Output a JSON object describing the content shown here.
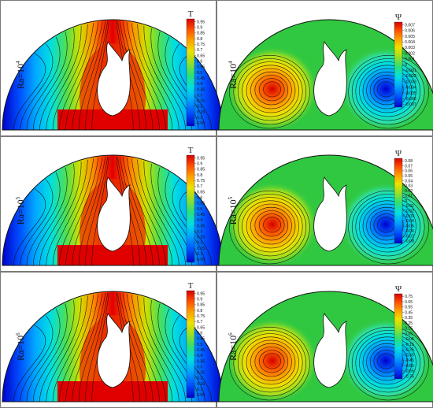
{
  "figure": {
    "rows": [
      {
        "ra_base": "Ra=10",
        "ra_exp": "4",
        "temperature": {
          "title": "T",
          "ticks": [
            "0.95",
            "0.9",
            "0.85",
            "0.8",
            "0.75",
            "0.7",
            "0.65",
            "0.6",
            "0.55",
            "0.5",
            "0.45",
            "0.4",
            "0.35",
            "0.3",
            "0.25",
            "0.2",
            "0.15",
            "0.1",
            "0.05"
          ]
        },
        "stream": {
          "title": "Ψ",
          "ticks": [
            "0.007",
            "0.006",
            "0.005",
            "0.004",
            "0.003",
            "0.002",
            "0.001",
            "0",
            "-0.001",
            "-0.002",
            "-0.003",
            "-0.004",
            "-0.005",
            "-0.006",
            "-0.007"
          ]
        }
      },
      {
        "ra_base": "Ra=10",
        "ra_exp": "5",
        "temperature": {
          "title": "T",
          "ticks": [
            "0.95",
            "0.9",
            "0.85",
            "0.8",
            "0.75",
            "0.7",
            "0.65",
            "0.6",
            "0.55",
            "0.5",
            "0.45",
            "0.4",
            "0.35",
            "0.3",
            "0.25",
            "0.2",
            "0.15",
            "0.1",
            "0.05"
          ]
        },
        "stream": {
          "title": "Ψ",
          "ticks": [
            "0.08",
            "0.07",
            "0.06",
            "0.05",
            "0.04",
            "0.03",
            "0.02",
            "0.01",
            "0",
            "-0.01",
            "-0.02",
            "-0.03",
            "-0.04",
            "-0.05",
            "-0.06",
            "-0.07",
            "-0.08"
          ]
        }
      },
      {
        "ra_base": "Ra=10",
        "ra_exp": "6",
        "temperature": {
          "title": "T",
          "ticks": [
            "0.95",
            "0.9",
            "0.85",
            "0.8",
            "0.75",
            "0.7",
            "0.65",
            "0.6",
            "0.55",
            "0.5",
            "0.45",
            "0.4",
            "0.35",
            "0.3",
            "0.25",
            "0.2",
            "0.15",
            "0.1",
            "0.05"
          ]
        },
        "stream": {
          "title": "Ψ",
          "ticks": [
            "0.75",
            "0.65",
            "0.55",
            "0.45",
            "0.35",
            "0.25",
            "0.15",
            "0.05",
            "-0.05",
            "-0.15",
            "-0.25",
            "-0.35",
            "-0.45",
            "-0.55",
            "-0.65",
            "-0.75"
          ]
        }
      }
    ],
    "colors": {
      "jet": [
        "#0000c8",
        "#0050ff",
        "#00a8ff",
        "#00e0e0",
        "#30e070",
        "#a0e020",
        "#f0e000",
        "#ffa000",
        "#ff5000",
        "#d80000"
      ],
      "stream_bg": "#30c840"
    }
  }
}
